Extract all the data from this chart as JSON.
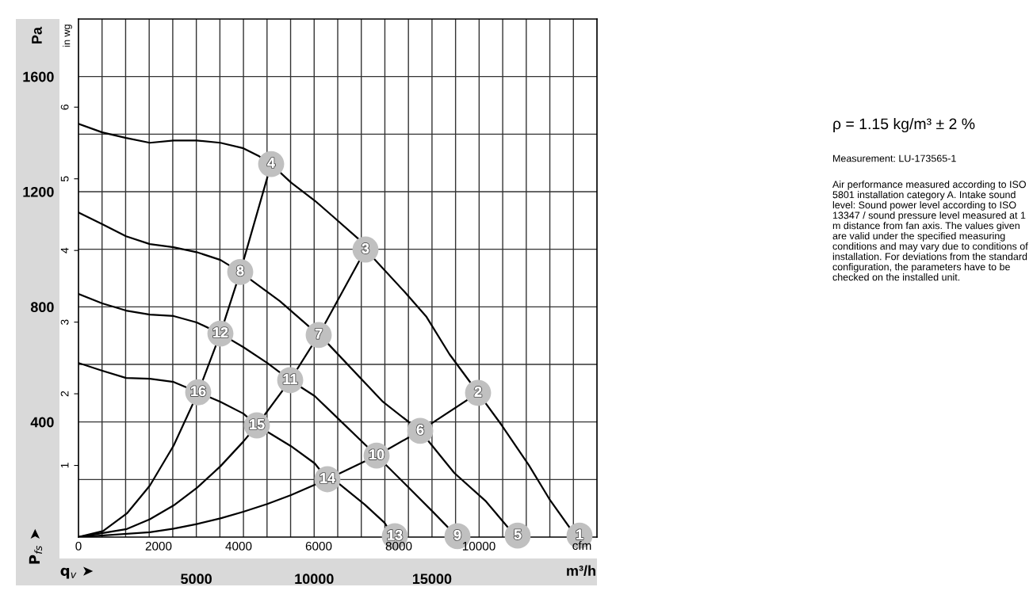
{
  "chart_data": {
    "type": "line",
    "xlabel": "m³/h",
    "ylabel": "Pa",
    "y2label": "in wg",
    "x2label": "cfm",
    "xlim": [
      0,
      22000
    ],
    "xticks": [
      {
        "value": 1000,
        "label": null
      },
      {
        "value": 2000,
        "label": null
      },
      {
        "value": 3000,
        "label": null
      },
      {
        "value": 4000,
        "label": null
      },
      5000,
      {
        "value": 6000,
        "label": null
      },
      {
        "value": 7000,
        "label": null
      },
      {
        "value": 8000,
        "label": null
      },
      {
        "value": 9000,
        "label": null
      },
      10000,
      {
        "value": 11000,
        "label": null
      },
      {
        "value": 12000,
        "label": null
      },
      {
        "value": 13000,
        "label": null
      },
      {
        "value": 14000,
        "label": null
      },
      15000,
      {
        "value": 16000,
        "label": null
      },
      {
        "value": 17000,
        "label": null
      },
      {
        "value": 18000,
        "label": null
      },
      {
        "value": 19000,
        "label": null
      },
      {
        "value": 20000,
        "label": null
      },
      {
        "value": 21000,
        "label": null
      }
    ],
    "ylim": [
      0,
      1800
    ],
    "yticks": [
      {
        "value": 200,
        "label": null
      },
      400,
      {
        "value": 600,
        "label": null
      },
      800,
      {
        "value": 1000,
        "label": null
      },
      1200,
      {
        "value": 1400,
        "label": null
      },
      1600
    ],
    "y2lim": [
      0,
      7.23
    ],
    "y2ticks": [
      1,
      2,
      3,
      4,
      5,
      6
    ],
    "x2lim": [
      0,
      12950
    ],
    "x2ticks": [
      0,
      2000,
      4000,
      6000,
      8000,
      10000
    ],
    "grid": true,
    "series": [
      {
        "color": "#000000",
        "x": [
          0,
          1009,
          2018,
          3028,
          4037,
          5012,
          6022,
          6997,
          7670,
          8175,
          9016,
          10025,
          10798,
          11909,
          12178,
          13826,
          14768,
          15744,
          16955,
          17964,
          19108,
          19982,
          21126
        ],
        "values": [
          1436,
          1406,
          1387,
          1370,
          1378,
          1378,
          1370,
          1351,
          1323,
          1296,
          1232,
          1169,
          1114,
          1034,
          999,
          853,
          765,
          635,
          501,
          388,
          250,
          132,
          0
        ]
      },
      {
        "color": "#000000",
        "x": [
          0,
          1009,
          2018,
          3028,
          4037,
          5012,
          6022,
          6863,
          8545,
          10193,
          10563,
          12918,
          14499,
          15945,
          17291,
          18569
        ],
        "values": [
          1128,
          1087,
          1045,
          1018,
          1007,
          990,
          963,
          921,
          820,
          702,
          674,
          470,
          369,
          223,
          124,
          0
        ]
      },
      {
        "color": "#000000",
        "x": [
          0,
          1009,
          2018,
          3028,
          4037,
          5012,
          6022,
          6997,
          8007,
          8983,
          10025,
          10798,
          12649,
          13826,
          15071,
          16080
        ],
        "values": [
          845,
          812,
          787,
          773,
          768,
          746,
          707,
          660,
          605,
          545,
          490,
          429,
          283,
          187,
          85,
          0
        ]
      },
      {
        "color": "#000000",
        "x": [
          0,
          1009,
          2018,
          3028,
          4037,
          5080,
          6022,
          6997,
          7569,
          9016,
          10025,
          10563,
          11034,
          12144,
          12985,
          13389
        ],
        "values": [
          605,
          578,
          553,
          550,
          539,
          503,
          470,
          429,
          388,
          316,
          256,
          201,
          187,
          113,
          50,
          0
        ]
      },
      {
        "color": "#000000",
        "x": [
          0,
          1043,
          2052,
          3028,
          4037,
          5080,
          6022,
          6863,
          8175
        ],
        "values": [
          0,
          21,
          82,
          179,
          318,
          503,
          707,
          921,
          1296
        ]
      },
      {
        "color": "#000000",
        "x": [
          0,
          2052,
          3028,
          4037,
          5012,
          6022,
          6997,
          7569,
          8983,
          10193,
          12178
        ],
        "values": [
          0,
          28,
          62,
          110,
          170,
          246,
          332,
          388,
          545,
          702,
          999
        ]
      },
      {
        "color": "#000000",
        "x": [
          0,
          3028,
          4037,
          5012,
          6022,
          6997,
          8007,
          9016,
          10563,
          12649,
          14499,
          16955
        ],
        "values": [
          0,
          17,
          29,
          45,
          65,
          88,
          115,
          146,
          201,
          283,
          369,
          501
        ]
      },
      {
        "type": "scatter",
        "color": "#c0c0c0",
        "marker": "circle",
        "x": [
          21260,
          16955,
          12178,
          8175,
          18635,
          14499,
          10193,
          6863,
          16080,
          12649,
          8983,
          6022,
          13423,
          10563,
          7569,
          5080
        ],
        "values": [
          5,
          501,
          999,
          1296,
          5,
          369,
          702,
          921,
          3,
          283,
          545,
          707,
          3,
          201,
          388,
          503
        ]
      }
    ],
    "annotations": [
      "ρ = 1.15 kg/m³ ± 2 %",
      "Measurement: LU-173565-1",
      "Air performance measured according to ISO 5801 installation category A. Intake sound level: Sound power level according to ISO 13347 / sound pressure level measured at 1 m distance from fan axis. The values given are valid under the specified measuring conditions and may vary due to conditions of installation. For deviations from the standard configuration, the parameters have to be checked on the installed unit.",
      "P$_{fs}$ ➤",
      "q$_{v}$ ➤",
      {
        "text": "1",
        "x": 21260,
        "y": 5
      },
      {
        "text": "2",
        "x": 16955,
        "y": 501
      },
      {
        "text": "3",
        "x": 12178,
        "y": 999
      },
      {
        "text": "4",
        "x": 8175,
        "y": 1296
      },
      {
        "text": "5",
        "x": 18635,
        "y": 5
      },
      {
        "text": "6",
        "x": 14499,
        "y": 369
      },
      {
        "text": "7",
        "x": 10193,
        "y": 702
      },
      {
        "text": "8",
        "x": 6863,
        "y": 921
      },
      {
        "text": "9",
        "x": 16080,
        "y": 3
      },
      {
        "text": "10",
        "x": 12649,
        "y": 283
      },
      {
        "text": "11",
        "x": 8983,
        "y": 545
      },
      {
        "text": "12",
        "x": 6022,
        "y": 707
      },
      {
        "text": "13",
        "x": 13423,
        "y": 3
      },
      {
        "text": "14",
        "x": 10563,
        "y": 201
      },
      {
        "text": "15",
        "x": 7569,
        "y": 388
      },
      {
        "text": "16",
        "x": 5080,
        "y": 503
      }
    ]
  }
}
